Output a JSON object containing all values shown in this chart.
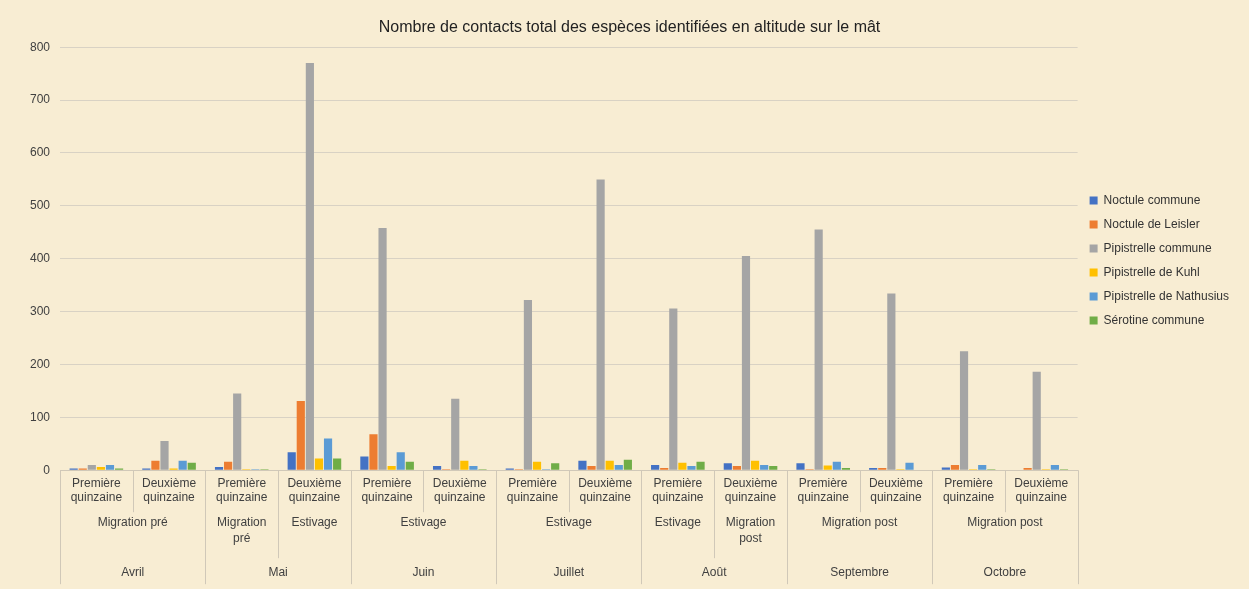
{
  "chart_data": {
    "type": "bar",
    "title": "Nombre de contacts total des espèces identifiées en altitude sur le mât",
    "categories": [
      "Première quinzaine",
      "Deuxième quinzaine",
      "Première quinzaine",
      "Deuxième quinzaine",
      "Première quinzaine",
      "Deuxième quinzaine",
      "Première quinzaine",
      "Deuxième quinzaine",
      "Première quinzaine",
      "Deuxième quinzaine",
      "Première quinzaine",
      "Deuxième quinzaine",
      "Première quinzaine",
      "Deuxième quinzaine"
    ],
    "series": [
      {
        "name": "Noctule commune",
        "color": "#4472c4",
        "values": [
          3,
          3,
          6,
          34,
          26,
          8,
          3,
          18,
          10,
          13,
          13,
          4,
          5,
          0
        ]
      },
      {
        "name": "Noctule de Leisler",
        "color": "#ed7d31",
        "values": [
          3,
          18,
          16,
          131,
          68,
          2,
          2,
          8,
          4,
          8,
          2,
          4,
          10,
          4
        ]
      },
      {
        "name": "Pipistrelle commune",
        "color": "#a5a5a5",
        "values": [
          10,
          55,
          145,
          770,
          458,
          135,
          322,
          550,
          306,
          405,
          455,
          334,
          225,
          186
        ]
      },
      {
        "name": "Pipistrelle de Kuhl",
        "color": "#ffc000",
        "values": [
          6,
          3,
          2,
          22,
          8,
          18,
          16,
          18,
          14,
          18,
          9,
          2,
          2,
          2
        ]
      },
      {
        "name": "Pipistrelle de Nathusius",
        "color": "#5b9bd5",
        "values": [
          10,
          18,
          2,
          60,
          34,
          8,
          2,
          10,
          8,
          10,
          16,
          14,
          10,
          10
        ]
      },
      {
        "name": "Sérotine commune",
        "color": "#70ad47",
        "values": [
          3,
          14,
          2,
          22,
          16,
          2,
          13,
          20,
          16,
          8,
          4,
          0,
          2,
          2
        ]
      }
    ],
    "ylim": [
      0,
      800
    ],
    "yticks": [
      0,
      100,
      200,
      300,
      400,
      500,
      600,
      700,
      800
    ],
    "grid": "y",
    "legend": "right",
    "annotations": [
      "Migration pré",
      "Migration pré",
      "Estivage",
      "Estivage",
      "Estivage",
      "Estivage",
      "Migration post",
      "Migration post",
      "Migration post",
      "Avril",
      "Mai",
      "Juin",
      "Juillet",
      "Août",
      "Septembre",
      "Octobre"
    ]
  }
}
